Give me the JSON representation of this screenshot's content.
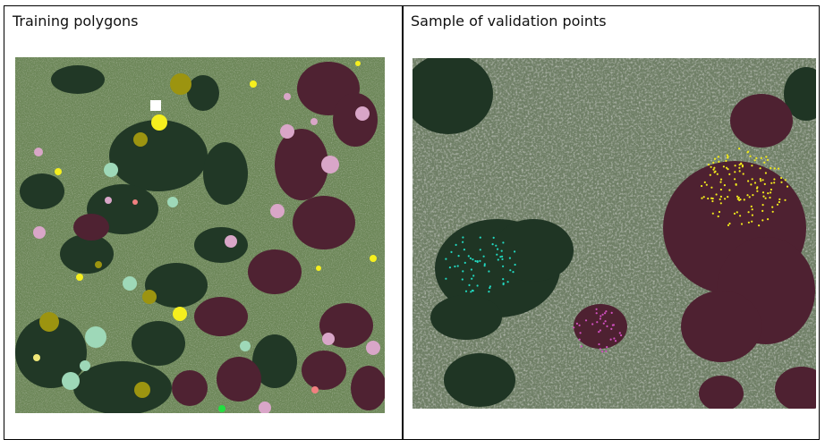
{
  "left_panel": {
    "title": "Training polygons"
  },
  "right_panel": {
    "title": "Sample of validation points"
  },
  "colors": {
    "grassland": "#6f8a5c",
    "forest": "#1f3524",
    "burned": "#4e2131",
    "yellow": "#f2ea1c",
    "olive": "#9c9410",
    "pink": "#d9a6c8",
    "mint": "#9ed8b8",
    "cyan": "#22d8c0",
    "magenta": "#d050c0"
  }
}
